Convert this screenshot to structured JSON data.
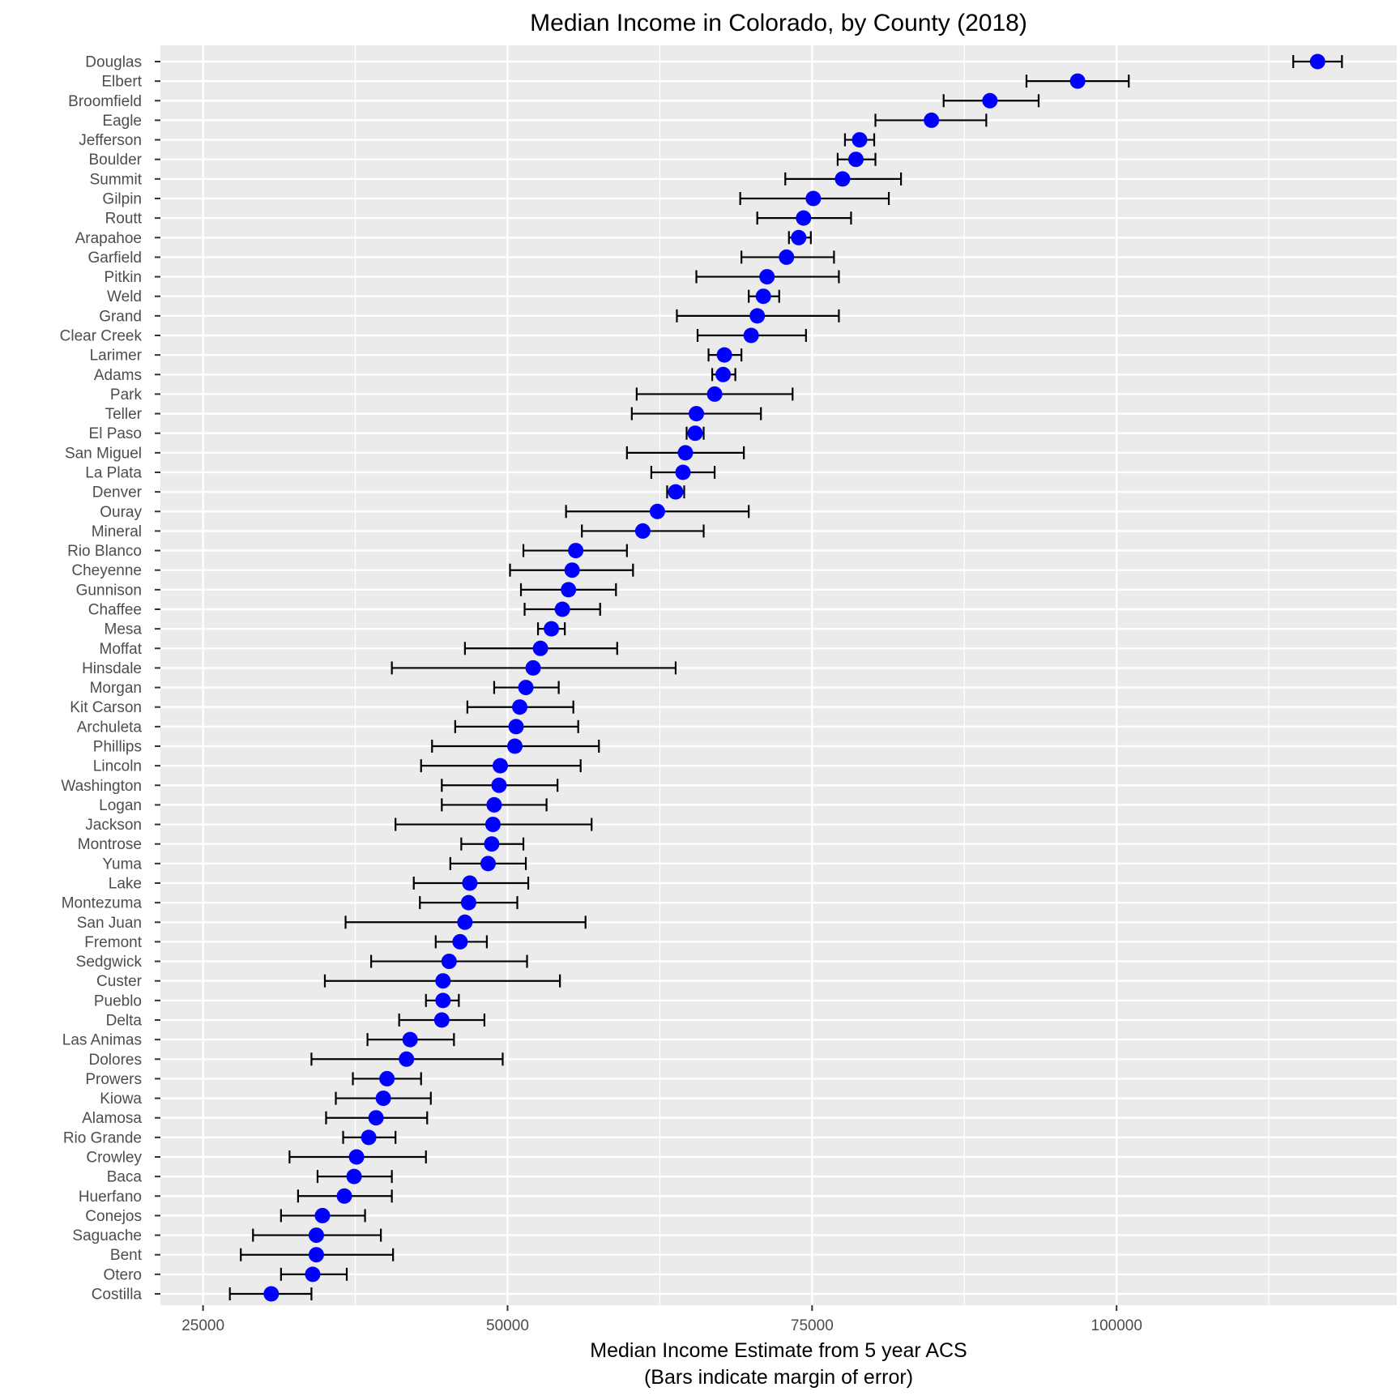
{
  "chart_data": {
    "type": "scatter",
    "title": "Median Income in Colorado, by County (2018)",
    "xlabel": "Median Income Estimate from 5 year ACS",
    "xlabel_note": "(Bars indicate margin of error)",
    "ylabel": "",
    "xlim": [
      21500,
      123000
    ],
    "x_ticks": [
      25000,
      50000,
      75000,
      100000
    ],
    "grid": true,
    "point_color": "#0000ff",
    "errorbar_color": "#000000",
    "panel_color": "#ebebeb",
    "grid_color": "#ffffff",
    "points": [
      {
        "county": "Douglas",
        "estimate": 116500,
        "low": 114500,
        "high": 118500
      },
      {
        "county": "Elbert",
        "estimate": 96800,
        "low": 92600,
        "high": 101000
      },
      {
        "county": "Broomfield",
        "estimate": 89600,
        "low": 85800,
        "high": 93600
      },
      {
        "county": "Eagle",
        "estimate": 84800,
        "low": 80200,
        "high": 89300
      },
      {
        "county": "Jefferson",
        "estimate": 78900,
        "low": 77700,
        "high": 80100
      },
      {
        "county": "Boulder",
        "estimate": 78600,
        "low": 77100,
        "high": 80200
      },
      {
        "county": "Summit",
        "estimate": 77500,
        "low": 72800,
        "high": 82300
      },
      {
        "county": "Gilpin",
        "estimate": 75100,
        "low": 69100,
        "high": 81300
      },
      {
        "county": "Routt",
        "estimate": 74300,
        "low": 70500,
        "high": 78200
      },
      {
        "county": "Arapahoe",
        "estimate": 73900,
        "low": 73100,
        "high": 74900
      },
      {
        "county": "Garfield",
        "estimate": 72900,
        "low": 69200,
        "high": 76800
      },
      {
        "county": "Pitkin",
        "estimate": 71300,
        "low": 65500,
        "high": 77200
      },
      {
        "county": "Weld",
        "estimate": 71000,
        "low": 69800,
        "high": 72300
      },
      {
        "county": "Grand",
        "estimate": 70500,
        "low": 63900,
        "high": 77200
      },
      {
        "county": "Clear Creek",
        "estimate": 70000,
        "low": 65600,
        "high": 74500
      },
      {
        "county": "Larimer",
        "estimate": 67800,
        "low": 66500,
        "high": 69200
      },
      {
        "county": "Adams",
        "estimate": 67700,
        "low": 66800,
        "high": 68700
      },
      {
        "county": "Park",
        "estimate": 67000,
        "low": 60600,
        "high": 73400
      },
      {
        "county": "Teller",
        "estimate": 65500,
        "low": 60200,
        "high": 70800
      },
      {
        "county": "El Paso",
        "estimate": 65400,
        "low": 64700,
        "high": 66100
      },
      {
        "county": "San Miguel",
        "estimate": 64600,
        "low": 59800,
        "high": 69400
      },
      {
        "county": "La Plata",
        "estimate": 64400,
        "low": 61800,
        "high": 67000
      },
      {
        "county": "Denver",
        "estimate": 63800,
        "low": 63100,
        "high": 64500
      },
      {
        "county": "Ouray",
        "estimate": 62300,
        "low": 54800,
        "high": 69800
      },
      {
        "county": "Mineral",
        "estimate": 61100,
        "low": 56100,
        "high": 66100
      },
      {
        "county": "Rio Blanco",
        "estimate": 55600,
        "low": 51300,
        "high": 59800
      },
      {
        "county": "Cheyenne",
        "estimate": 55300,
        "low": 50200,
        "high": 60300
      },
      {
        "county": "Gunnison",
        "estimate": 55000,
        "low": 51100,
        "high": 58900
      },
      {
        "county": "Chaffee",
        "estimate": 54500,
        "low": 51400,
        "high": 57600
      },
      {
        "county": "Mesa",
        "estimate": 53600,
        "low": 52500,
        "high": 54700
      },
      {
        "county": "Moffat",
        "estimate": 52700,
        "low": 46500,
        "high": 59000
      },
      {
        "county": "Hinsdale",
        "estimate": 52100,
        "low": 40500,
        "high": 63800
      },
      {
        "county": "Morgan",
        "estimate": 51500,
        "low": 48900,
        "high": 54200
      },
      {
        "county": "Kit Carson",
        "estimate": 51000,
        "low": 46700,
        "high": 55400
      },
      {
        "county": "Archuleta",
        "estimate": 50700,
        "low": 45700,
        "high": 55800
      },
      {
        "county": "Phillips",
        "estimate": 50600,
        "low": 43800,
        "high": 57500
      },
      {
        "county": "Lincoln",
        "estimate": 49400,
        "low": 42900,
        "high": 56000
      },
      {
        "county": "Washington",
        "estimate": 49300,
        "low": 44600,
        "high": 54100
      },
      {
        "county": "Logan",
        "estimate": 48900,
        "low": 44600,
        "high": 53200
      },
      {
        "county": "Jackson",
        "estimate": 48800,
        "low": 40800,
        "high": 56900
      },
      {
        "county": "Montrose",
        "estimate": 48700,
        "low": 46200,
        "high": 51300
      },
      {
        "county": "Yuma",
        "estimate": 48400,
        "low": 45300,
        "high": 51500
      },
      {
        "county": "Lake",
        "estimate": 46900,
        "low": 42300,
        "high": 51700
      },
      {
        "county": "Montezuma",
        "estimate": 46800,
        "low": 42800,
        "high": 50800
      },
      {
        "county": "San Juan",
        "estimate": 46500,
        "low": 36700,
        "high": 56400
      },
      {
        "county": "Fremont",
        "estimate": 46100,
        "low": 44100,
        "high": 48300
      },
      {
        "county": "Sedgwick",
        "estimate": 45200,
        "low": 38800,
        "high": 51600
      },
      {
        "county": "Custer",
        "estimate": 44700,
        "low": 35000,
        "high": 54300
      },
      {
        "county": "Pueblo",
        "estimate": 44700,
        "low": 43300,
        "high": 46000
      },
      {
        "county": "Delta",
        "estimate": 44600,
        "low": 41100,
        "high": 48100
      },
      {
        "county": "Las Animas",
        "estimate": 42000,
        "low": 38500,
        "high": 45600
      },
      {
        "county": "Dolores",
        "estimate": 41700,
        "low": 33900,
        "high": 49600
      },
      {
        "county": "Prowers",
        "estimate": 40100,
        "low": 37300,
        "high": 42900
      },
      {
        "county": "Kiowa",
        "estimate": 39800,
        "low": 35900,
        "high": 43700
      },
      {
        "county": "Alamosa",
        "estimate": 39200,
        "low": 35100,
        "high": 43400
      },
      {
        "county": "Rio Grande",
        "estimate": 38600,
        "low": 36500,
        "high": 40800
      },
      {
        "county": "Crowley",
        "estimate": 37600,
        "low": 32100,
        "high": 43300
      },
      {
        "county": "Baca",
        "estimate": 37400,
        "low": 34400,
        "high": 40500
      },
      {
        "county": "Huerfano",
        "estimate": 36600,
        "low": 32800,
        "high": 40500
      },
      {
        "county": "Conejos",
        "estimate": 34800,
        "low": 31400,
        "high": 38300
      },
      {
        "county": "Saguache",
        "estimate": 34300,
        "low": 29100,
        "high": 39600
      },
      {
        "county": "Bent",
        "estimate": 34300,
        "low": 28100,
        "high": 40600
      },
      {
        "county": "Otero",
        "estimate": 34000,
        "low": 31400,
        "high": 36800
      },
      {
        "county": "Costilla",
        "estimate": 30600,
        "low": 27200,
        "high": 33900
      }
    ]
  }
}
